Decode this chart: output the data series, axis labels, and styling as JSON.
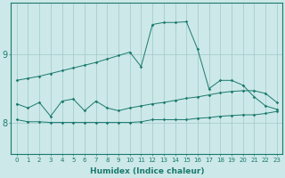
{
  "xlabel": "Humidex (Indice chaleur)",
  "x": [
    0,
    1,
    2,
    3,
    4,
    5,
    6,
    7,
    8,
    9,
    10,
    11,
    12,
    13,
    14,
    15,
    16,
    17,
    18,
    19,
    20,
    21,
    22,
    23
  ],
  "line1": [
    8.62,
    8.65,
    8.68,
    8.72,
    8.76,
    8.8,
    8.84,
    8.88,
    8.93,
    8.98,
    9.03,
    8.82,
    9.43,
    9.46,
    9.46,
    9.47,
    9.07,
    8.5,
    8.62,
    8.62,
    8.55,
    8.38,
    8.25,
    8.2
  ],
  "line2": [
    8.28,
    8.22,
    8.3,
    8.1,
    8.32,
    8.35,
    8.18,
    8.32,
    8.22,
    8.18,
    8.22,
    8.25,
    8.28,
    8.3,
    8.33,
    8.36,
    8.38,
    8.41,
    8.44,
    8.46,
    8.47,
    8.47,
    8.43,
    8.3
  ],
  "line3": [
    8.05,
    8.02,
    8.02,
    8.01,
    8.01,
    8.01,
    8.01,
    8.01,
    8.01,
    8.01,
    8.01,
    8.02,
    8.05,
    8.05,
    8.05,
    8.05,
    8.07,
    8.08,
    8.1,
    8.11,
    8.12,
    8.12,
    8.14,
    8.17
  ],
  "line_color": "#1a7a6e",
  "bg_color": "#cce8e8",
  "grid_color": "#a0c8c8",
  "ylim": [
    7.55,
    9.75
  ],
  "yticks": [
    8,
    9
  ],
  "xtick_labels": [
    "0",
    "1",
    "2",
    "3",
    "4",
    "5",
    "6",
    "7",
    "8",
    "9",
    "10",
    "11",
    "12",
    "13",
    "14",
    "15",
    "16",
    "17",
    "18",
    "19",
    "20",
    "21",
    "22",
    "23"
  ]
}
